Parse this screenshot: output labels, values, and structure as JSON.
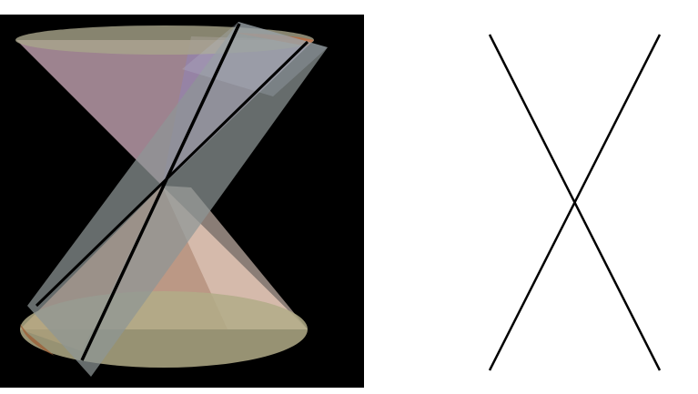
{
  "figure": {
    "left_panel": "double-napped-cone-with-plane",
    "right_panel": "degenerate-conic-intersecting-lines"
  },
  "colors": {
    "background_left": "#000000",
    "background_right": "#ffffff",
    "cone_upper_fill": "#b58f9d",
    "cone_lower_fill": "#d9a98c",
    "cone_rim_fill": "#9c9a7a",
    "plane_fill": "#8a9090",
    "intersection_line": "#000000"
  }
}
